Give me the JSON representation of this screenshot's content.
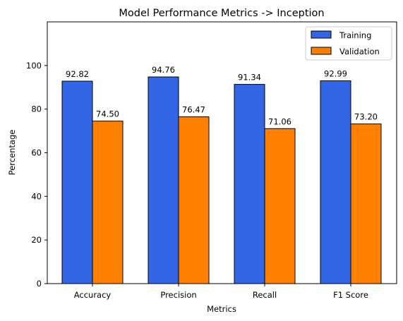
{
  "chart_data": {
    "type": "bar",
    "title": "Model Performance Metrics -> Inception",
    "xlabel": "Metrics",
    "ylabel": "Percentage",
    "categories": [
      "Accuracy",
      "Precision",
      "Recall",
      "F1 Score"
    ],
    "series": [
      {
        "name": "Training",
        "values": [
          92.82,
          94.76,
          91.34,
          92.99
        ],
        "labels": [
          "92.82",
          "94.76",
          "91.34",
          "92.99"
        ],
        "color": "#3366e6"
      },
      {
        "name": "Validation",
        "values": [
          74.5,
          76.47,
          71.06,
          73.2
        ],
        "labels": [
          "74.50",
          "76.47",
          "71.06",
          "73.20"
        ],
        "color": "#ff8000"
      }
    ],
    "ylim": [
      0,
      120
    ],
    "yticks": [
      0,
      20,
      40,
      60,
      80,
      100
    ],
    "ytick_labels": [
      "0",
      "20",
      "40",
      "60",
      "80",
      "100"
    ],
    "grid": false,
    "legend_position": "top-right"
  }
}
